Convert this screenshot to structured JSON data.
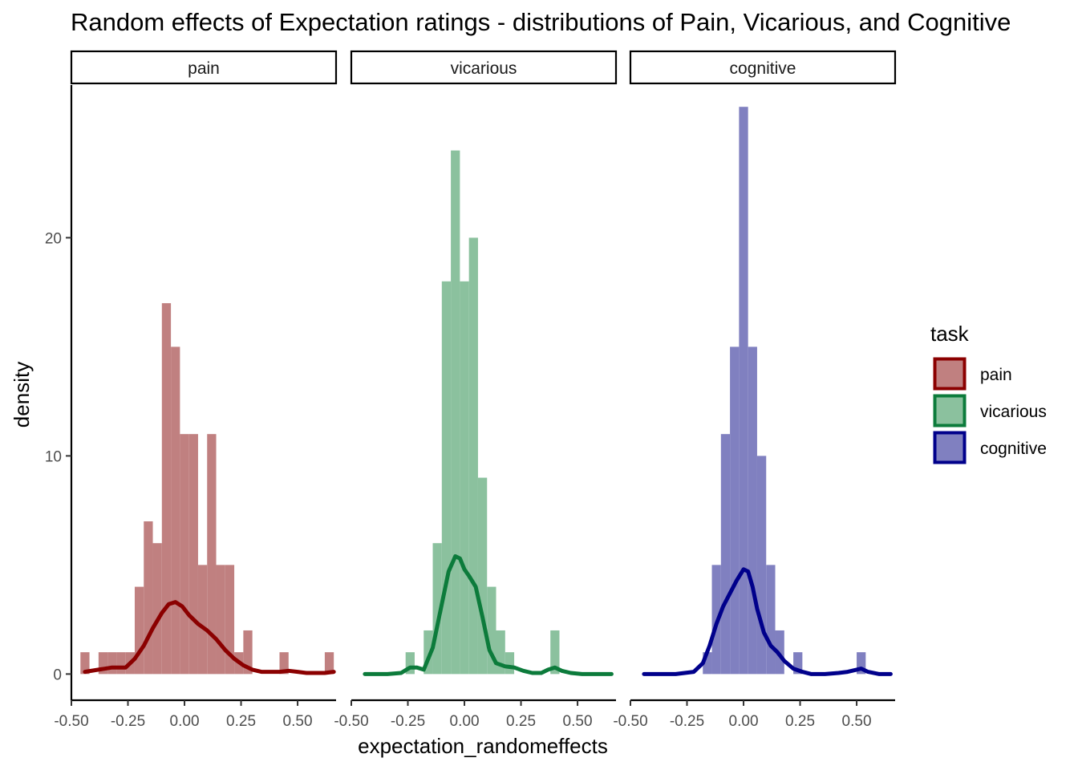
{
  "chart_data": {
    "type": "histogram+density",
    "title": "Random effects of Expectation ratings - distributions of Pain, Vicarious, and Cognitive",
    "xlabel": "expectation_randomeffects",
    "ylabel": "density",
    "xlim": [
      -0.5,
      0.67
    ],
    "ylim": [
      -1.2,
      27
    ],
    "x_ticks": [
      -0.5,
      -0.25,
      0.0,
      0.25,
      0.5
    ],
    "x_tick_labels": [
      "-0.50",
      "-0.25",
      "0.00",
      "0.25",
      "0.50"
    ],
    "y_ticks": [
      0,
      10,
      20
    ],
    "y_tick_labels": [
      "0",
      "10",
      "20"
    ],
    "bin_width": 0.04,
    "grid": false,
    "legend": {
      "title": "task",
      "position": "right",
      "items": [
        {
          "label": "pain",
          "fill": "#c08080",
          "stroke": "#8b0000"
        },
        {
          "label": "vicarious",
          "fill": "#8bc19e",
          "stroke": "#0c7b3b"
        },
        {
          "label": "cognitive",
          "fill": "#8080c0",
          "stroke": "#00008b"
        }
      ]
    },
    "panels": [
      {
        "strip": "pain",
        "bar_color": "#c08080",
        "line_color": "#8b0000",
        "bins": [
          {
            "x0": -0.46,
            "x1": -0.42,
            "y": 1
          },
          {
            "x0": -0.42,
            "x1": -0.38,
            "y": 0
          },
          {
            "x0": -0.38,
            "x1": -0.34,
            "y": 1
          },
          {
            "x0": -0.34,
            "x1": -0.3,
            "y": 1
          },
          {
            "x0": -0.3,
            "x1": -0.26,
            "y": 1
          },
          {
            "x0": -0.26,
            "x1": -0.22,
            "y": 1
          },
          {
            "x0": -0.22,
            "x1": -0.18,
            "y": 4
          },
          {
            "x0": -0.18,
            "x1": -0.14,
            "y": 7
          },
          {
            "x0": -0.14,
            "x1": -0.1,
            "y": 6
          },
          {
            "x0": -0.1,
            "x1": -0.06,
            "y": 17
          },
          {
            "x0": -0.06,
            "x1": -0.02,
            "y": 15
          },
          {
            "x0": -0.02,
            "x1": 0.02,
            "y": 11
          },
          {
            "x0": 0.02,
            "x1": 0.06,
            "y": 11
          },
          {
            "x0": 0.06,
            "x1": 0.1,
            "y": 5
          },
          {
            "x0": 0.1,
            "x1": 0.14,
            "y": 11
          },
          {
            "x0": 0.14,
            "x1": 0.18,
            "y": 5
          },
          {
            "x0": 0.18,
            "x1": 0.22,
            "y": 5
          },
          {
            "x0": 0.22,
            "x1": 0.26,
            "y": 1
          },
          {
            "x0": 0.26,
            "x1": 0.3,
            "y": 2
          },
          {
            "x0": 0.3,
            "x1": 0.34,
            "y": 0
          },
          {
            "x0": 0.34,
            "x1": 0.38,
            "y": 0
          },
          {
            "x0": 0.38,
            "x1": 0.42,
            "y": 0
          },
          {
            "x0": 0.42,
            "x1": 0.46,
            "y": 1
          },
          {
            "x0": 0.46,
            "x1": 0.5,
            "y": 0
          },
          {
            "x0": 0.5,
            "x1": 0.54,
            "y": 0
          },
          {
            "x0": 0.54,
            "x1": 0.58,
            "y": 0
          },
          {
            "x0": 0.58,
            "x1": 0.62,
            "y": 0
          },
          {
            "x0": 0.62,
            "x1": 0.66,
            "y": 1
          }
        ],
        "density": {
          "x": [
            -0.44,
            -0.38,
            -0.32,
            -0.26,
            -0.22,
            -0.18,
            -0.14,
            -0.1,
            -0.07,
            -0.04,
            -0.01,
            0.02,
            0.06,
            0.1,
            0.14,
            0.18,
            0.22,
            0.26,
            0.3,
            0.34,
            0.38,
            0.42,
            0.46,
            0.5,
            0.54,
            0.58,
            0.62,
            0.66
          ],
          "y": [
            0.1,
            0.2,
            0.3,
            0.3,
            0.7,
            1.3,
            2.1,
            2.8,
            3.2,
            3.3,
            3.1,
            2.7,
            2.3,
            2.0,
            1.6,
            1.1,
            0.7,
            0.4,
            0.2,
            0.1,
            0.1,
            0.1,
            0.15,
            0.1,
            0.05,
            0.05,
            0.05,
            0.1
          ]
        }
      },
      {
        "strip": "vicarious",
        "bar_color": "#8bc19e",
        "line_color": "#0c7b3b",
        "bins": [
          {
            "x0": -0.26,
            "x1": -0.22,
            "y": 1
          },
          {
            "x0": -0.22,
            "x1": -0.18,
            "y": 0
          },
          {
            "x0": -0.18,
            "x1": -0.14,
            "y": 2
          },
          {
            "x0": -0.14,
            "x1": -0.1,
            "y": 6
          },
          {
            "x0": -0.1,
            "x1": -0.06,
            "y": 18
          },
          {
            "x0": -0.06,
            "x1": -0.02,
            "y": 24
          },
          {
            "x0": -0.02,
            "x1": 0.02,
            "y": 18
          },
          {
            "x0": 0.02,
            "x1": 0.06,
            "y": 20
          },
          {
            "x0": 0.06,
            "x1": 0.1,
            "y": 9
          },
          {
            "x0": 0.1,
            "x1": 0.14,
            "y": 4
          },
          {
            "x0": 0.14,
            "x1": 0.18,
            "y": 2
          },
          {
            "x0": 0.18,
            "x1": 0.22,
            "y": 1
          },
          {
            "x0": 0.22,
            "x1": 0.26,
            "y": 0
          },
          {
            "x0": 0.26,
            "x1": 0.3,
            "y": 0
          },
          {
            "x0": 0.3,
            "x1": 0.34,
            "y": 0
          },
          {
            "x0": 0.34,
            "x1": 0.38,
            "y": 0
          },
          {
            "x0": 0.38,
            "x1": 0.42,
            "y": 2
          }
        ],
        "density": {
          "x": [
            -0.44,
            -0.34,
            -0.28,
            -0.24,
            -0.21,
            -0.18,
            -0.14,
            -0.1,
            -0.07,
            -0.04,
            -0.02,
            0.0,
            0.02,
            0.05,
            0.08,
            0.11,
            0.14,
            0.18,
            0.22,
            0.26,
            0.3,
            0.34,
            0.37,
            0.4,
            0.43,
            0.47,
            0.52,
            0.58,
            0.65
          ],
          "y": [
            0.0,
            0.0,
            0.05,
            0.3,
            0.3,
            0.2,
            1.2,
            3.2,
            4.7,
            5.4,
            5.3,
            4.8,
            4.5,
            4.0,
            2.6,
            1.1,
            0.5,
            0.35,
            0.3,
            0.15,
            0.05,
            0.05,
            0.2,
            0.3,
            0.15,
            0.05,
            0.0,
            0.0,
            0.0
          ]
        }
      },
      {
        "strip": "cognitive",
        "bar_color": "#8080c0",
        "line_color": "#00008b",
        "bins": [
          {
            "x0": -0.18,
            "x1": -0.14,
            "y": 1
          },
          {
            "x0": -0.14,
            "x1": -0.1,
            "y": 5
          },
          {
            "x0": -0.1,
            "x1": -0.06,
            "y": 11
          },
          {
            "x0": -0.06,
            "x1": -0.02,
            "y": 15
          },
          {
            "x0": -0.02,
            "x1": 0.02,
            "y": 26
          },
          {
            "x0": 0.02,
            "x1": 0.06,
            "y": 15
          },
          {
            "x0": 0.06,
            "x1": 0.1,
            "y": 10
          },
          {
            "x0": 0.1,
            "x1": 0.14,
            "y": 5
          },
          {
            "x0": 0.14,
            "x1": 0.18,
            "y": 2
          },
          {
            "x0": 0.18,
            "x1": 0.22,
            "y": 0
          },
          {
            "x0": 0.22,
            "x1": 0.26,
            "y": 1
          },
          {
            "x0": 0.26,
            "x1": 0.3,
            "y": 0
          },
          {
            "x0": 0.3,
            "x1": 0.34,
            "y": 0
          },
          {
            "x0": 0.34,
            "x1": 0.38,
            "y": 0
          },
          {
            "x0": 0.38,
            "x1": 0.42,
            "y": 0
          },
          {
            "x0": 0.42,
            "x1": 0.46,
            "y": 0
          },
          {
            "x0": 0.46,
            "x1": 0.5,
            "y": 0
          },
          {
            "x0": 0.5,
            "x1": 0.54,
            "y": 1
          }
        ],
        "density": {
          "x": [
            -0.44,
            -0.3,
            -0.22,
            -0.18,
            -0.15,
            -0.12,
            -0.09,
            -0.06,
            -0.03,
            0.0,
            0.02,
            0.04,
            0.06,
            0.09,
            0.12,
            0.15,
            0.18,
            0.22,
            0.26,
            0.3,
            0.36,
            0.42,
            0.46,
            0.5,
            0.52,
            0.55,
            0.6,
            0.65
          ],
          "y": [
            0.0,
            0.0,
            0.1,
            0.5,
            1.3,
            2.3,
            3.1,
            3.7,
            4.3,
            4.8,
            4.7,
            4.0,
            3.0,
            1.9,
            1.3,
            1.0,
            0.6,
            0.25,
            0.1,
            0.0,
            0.0,
            0.05,
            0.1,
            0.2,
            0.25,
            0.1,
            0.0,
            0.0
          ]
        }
      }
    ]
  }
}
